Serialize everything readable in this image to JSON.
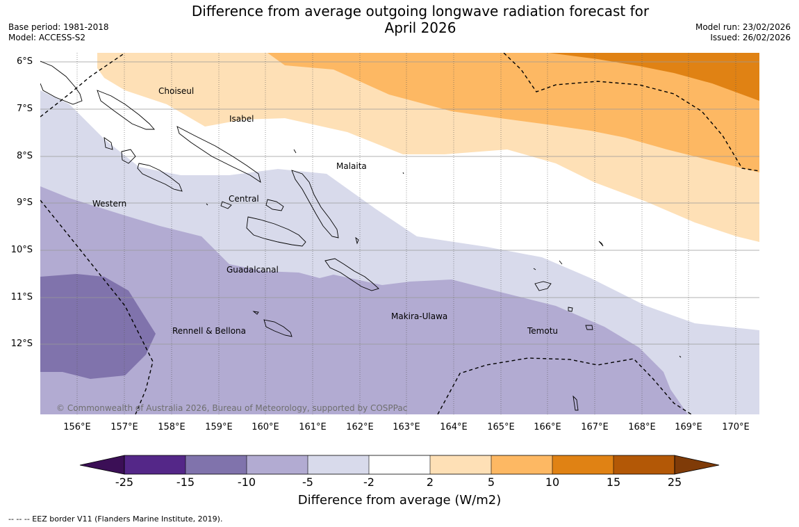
{
  "title": "Difference from average outgoing longwave radiation forecast for April 2026",
  "title_line1": "Difference from average outgoing longwave radiation forecast for",
  "title_line2": "April 2026",
  "meta": {
    "base_period": "Base period: 1981-2018",
    "model": "Model: ACCESS-S2",
    "model_run": "Model run: 23/02/2026",
    "issued": "Issued: 26/02/2026"
  },
  "map": {
    "latitude_labels": [
      "6°S",
      "7°S",
      "8°S",
      "9°S",
      "10°S",
      "11°S",
      "12°S"
    ],
    "longitude_labels": [
      "156°E",
      "157°E",
      "158°E",
      "159°E",
      "160°E",
      "161°E",
      "162°E",
      "163°E",
      "164°E",
      "165°E",
      "166°E",
      "167°E",
      "168°E",
      "169°E",
      "170°E"
    ],
    "regions": [
      "Choiseul",
      "Isabel",
      "Malaita",
      "Western",
      "Central",
      "Guadalcanal",
      "Makira-Ulawa",
      "Rennell & Bellona",
      "Temotu"
    ],
    "copyright": "© Commonwealth of Australia 2026, Bureau of Meteorology, supported by COSPPac",
    "colors": {
      "n25": "#3b0f56",
      "n15_25": "#542788",
      "n10_15": "#8073ac",
      "n5_10": "#b2abd2",
      "n2_5": "#d8daeb",
      "p2_2": "#ffffff",
      "p2_5": "#fee0b6",
      "p5_10": "#fdb863",
      "p10_15": "#e08214",
      "p15_25": "#b35806",
      "p25": "#7f3b08"
    }
  },
  "colorbar": {
    "ticks": [
      "-25",
      "-15",
      "-10",
      "-5",
      "-2",
      "2",
      "5",
      "10",
      "15",
      "25"
    ],
    "title": "Difference from average (W/m2)"
  },
  "footnote": "-- -- -- EEZ border V11 (Flanders Marine Institute, 2019)."
}
